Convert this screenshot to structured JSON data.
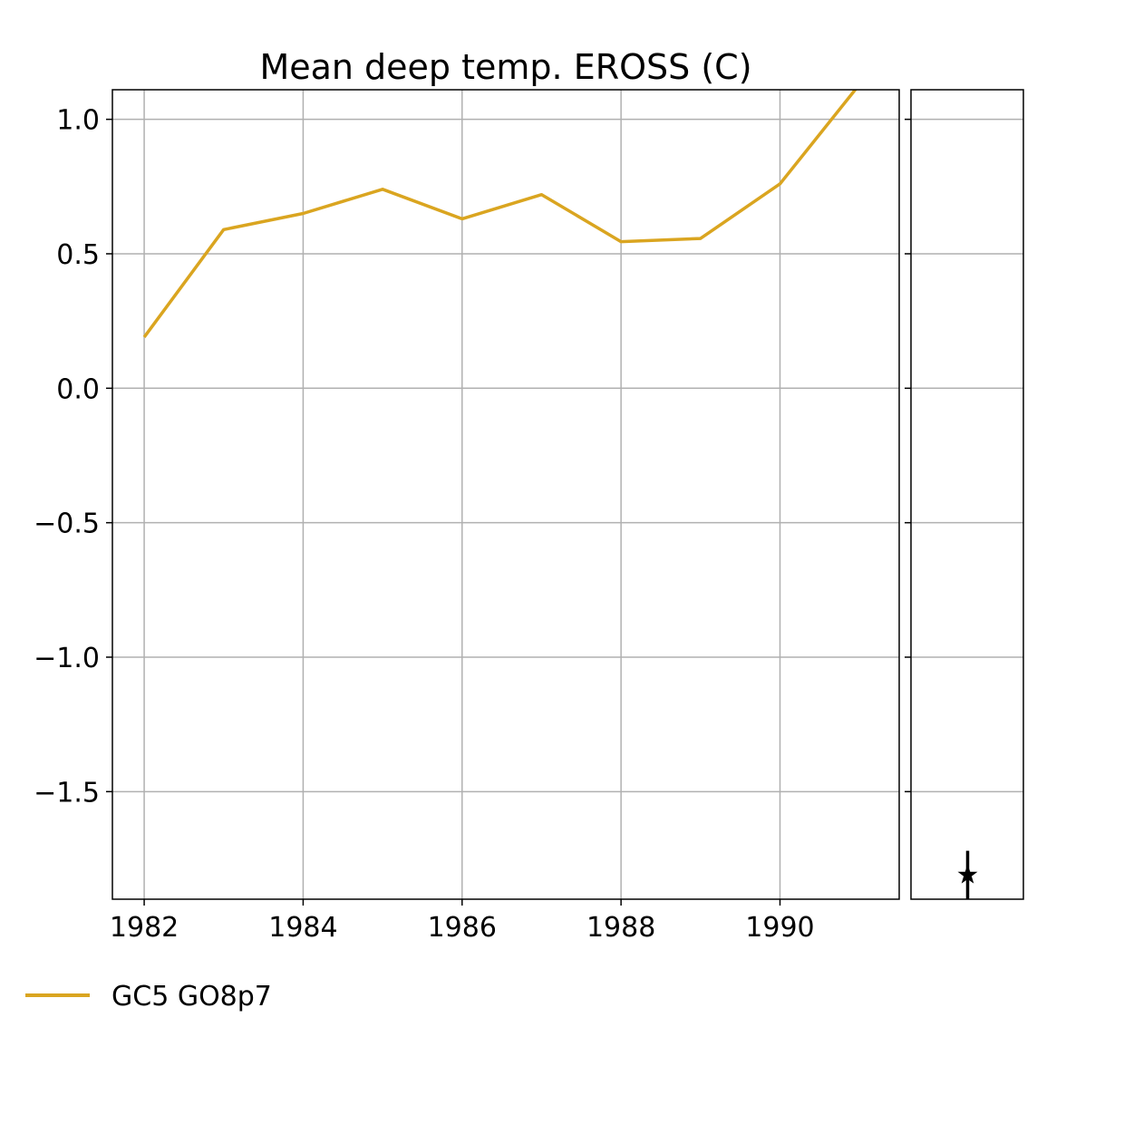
{
  "chart_data": {
    "type": "line",
    "title": "Mean deep temp. EROSS (C)",
    "xlabel": "",
    "ylabel": "",
    "xlim": [
      1981.6,
      1991.5
    ],
    "ylim": [
      -1.9,
      1.11
    ],
    "x_ticks": [
      1982,
      1984,
      1986,
      1988,
      1990
    ],
    "x_tick_labels": [
      "1982",
      "1984",
      "1986",
      "1988",
      "1990"
    ],
    "y_ticks": [
      1.0,
      0.5,
      0.0,
      -0.5,
      -1.0,
      -1.5
    ],
    "y_tick_labels": [
      "1.0",
      "0.5",
      "0.0",
      "−0.5",
      "−1.0",
      "−1.5"
    ],
    "grid": true,
    "legend_position": "bottom-left",
    "series": [
      {
        "name": "GC5 GO8p7",
        "color": "#DAA520",
        "x": [
          1982,
          1983,
          1984,
          1985,
          1986,
          1987,
          1988,
          1989,
          1990,
          1991,
          1992
        ],
        "y": [
          0.19,
          0.59,
          0.65,
          0.74,
          0.63,
          0.72,
          0.545,
          0.557,
          0.76,
          1.13,
          1.4
        ]
      }
    ],
    "side_panel": {
      "type": "errorbar",
      "marker": "star",
      "color": "#000000",
      "y": -1.81,
      "y_err_low": -1.92,
      "y_err_high": -1.72
    }
  }
}
